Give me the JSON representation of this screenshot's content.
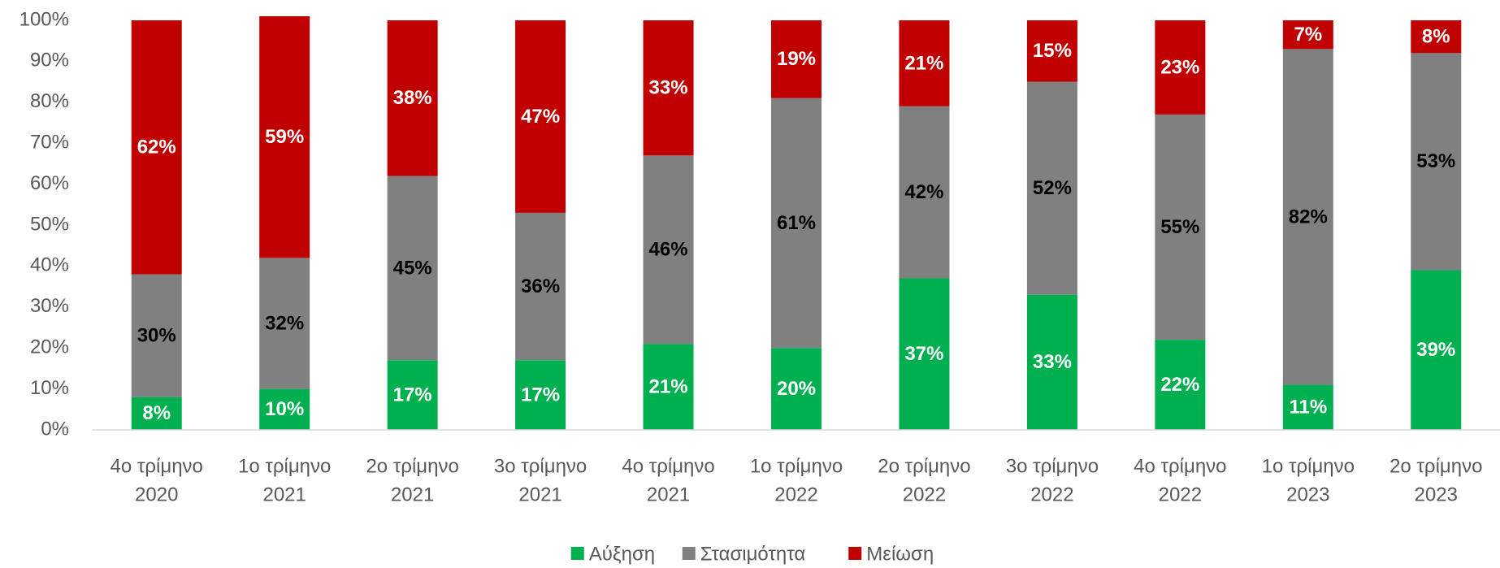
{
  "chart_data": {
    "type": "stacked_bar",
    "categories": [
      [
        "4ο τρίμηνο",
        "2020"
      ],
      [
        "1ο τρίμηνο",
        "2021"
      ],
      [
        "2ο τρίμηνο",
        "2021"
      ],
      [
        "3ο τρίμηνο",
        "2021"
      ],
      [
        "4ο τρίμηνο",
        "2021"
      ],
      [
        "1ο τρίμηνο",
        "2022"
      ],
      [
        "2ο τρίμηνο",
        "2022"
      ],
      [
        "3ο τρίμηνο",
        "2022"
      ],
      [
        "4ο τρίμηνο",
        "2022"
      ],
      [
        "1ο τρίμηνο",
        "2023"
      ],
      [
        "2ο τρίμηνο",
        "2023"
      ]
    ],
    "series": [
      {
        "name": "Αύξηση",
        "color": "#00b050",
        "label_color": "#ffffff",
        "values": [
          8,
          10,
          17,
          17,
          21,
          20,
          37,
          33,
          22,
          11,
          39
        ],
        "value_labels": [
          "8%",
          "10%",
          "17%",
          "17%",
          "21%",
          "20%",
          "37%",
          "33%",
          "22%",
          "11%",
          "39%"
        ]
      },
      {
        "name": "Στασιμότητα",
        "color": "#808080",
        "label_color": "#000000",
        "values": [
          30,
          32,
          45,
          36,
          46,
          61,
          42,
          52,
          55,
          82,
          53
        ],
        "value_labels": [
          "30%",
          "32%",
          "45%",
          "36%",
          "46%",
          "61%",
          "42%",
          "52%",
          "55%",
          "82%",
          "53%"
        ]
      },
      {
        "name": "Μείωση",
        "color": "#c00000",
        "label_color": "#ffffff",
        "values": [
          62,
          59,
          38,
          47,
          33,
          19,
          21,
          15,
          23,
          7,
          8
        ],
        "value_labels": [
          "62%",
          "59%",
          "38%",
          "47%",
          "33%",
          "19%",
          "21%",
          "15%",
          "23%",
          "7%",
          "8%"
        ]
      }
    ],
    "ylim": [
      0,
      100
    ],
    "yticks": [
      {
        "value": 0,
        "label": "0%"
      },
      {
        "value": 10,
        "label": "10%"
      },
      {
        "value": 20,
        "label": "20%"
      },
      {
        "value": 30,
        "label": "30%"
      },
      {
        "value": 40,
        "label": "40%"
      },
      {
        "value": 50,
        "label": "50%"
      },
      {
        "value": 60,
        "label": "60%"
      },
      {
        "value": 70,
        "label": "70%"
      },
      {
        "value": 80,
        "label": "80%"
      },
      {
        "value": 90,
        "label": "90%"
      },
      {
        "value": 100,
        "label": "100%"
      }
    ],
    "grid": false,
    "legend": "bottom"
  }
}
